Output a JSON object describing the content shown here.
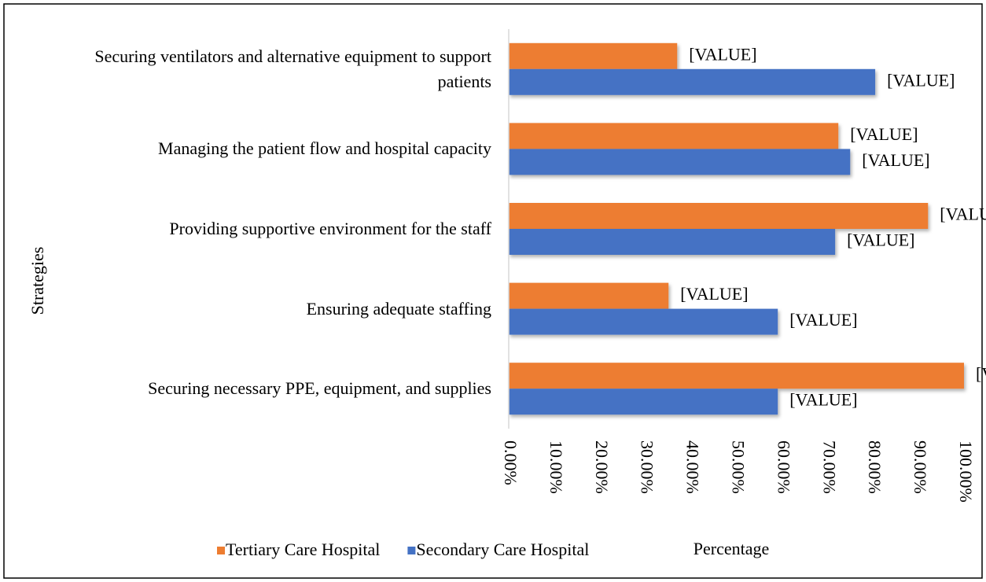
{
  "chart_data": {
    "type": "barh",
    "categories": [
      "Securing ventilators and alternative equipment to support patients",
      "Managing the patient flow and hospital capacity",
      "Providing supportive environment for the staff",
      "Ensuring adequate staffing",
      "Securing necessary PPE, equipment, and supplies"
    ],
    "series": [
      {
        "name": "Tertiary Care Hospital",
        "color": "#ed7d31",
        "values": [
          37,
          72.4,
          92.1,
          35.1,
          100
        ],
        "value_labels": [
          "[VALUE]",
          "[VALUE]",
          "[VALUE]",
          "[VALUE]",
          "[VALUE]"
        ]
      },
      {
        "name": "Secondary Care Hospital",
        "color": "#4472c4",
        "values": [
          80.5,
          75,
          71.7,
          59.1,
          59.1
        ],
        "value_labels": [
          "[VALUE]",
          "[VALUE]",
          "[VALUE]",
          "[VALUE]",
          "[VALUE]"
        ]
      }
    ],
    "xlim": [
      0,
      100
    ],
    "xticks": [
      {
        "value": 0,
        "label": "0.00%"
      },
      {
        "value": 10,
        "label": "10.00%"
      },
      {
        "value": 20,
        "label": "20.00%"
      },
      {
        "value": 30,
        "label": "30.00%"
      },
      {
        "value": 40,
        "label": "40.00%"
      },
      {
        "value": 50,
        "label": "50.00%"
      },
      {
        "value": 60,
        "label": "60.00%"
      },
      {
        "value": 70,
        "label": "70.00%"
      },
      {
        "value": 80,
        "label": "80.00%"
      },
      {
        "value": 90,
        "label": "90.00%"
      },
      {
        "value": 100,
        "label": "100.00%"
      }
    ],
    "xlabel": "Percentage",
    "ylabel": "Strategies",
    "legend": "bottom-left",
    "grid": false
  }
}
